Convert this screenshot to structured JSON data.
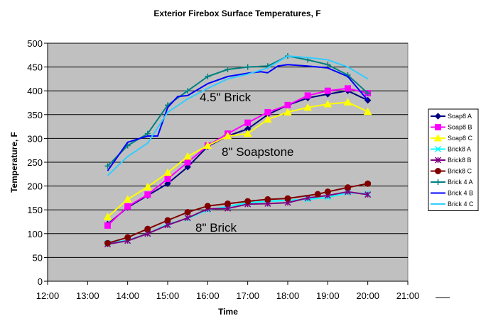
{
  "chart_data": {
    "type": "line",
    "title": "Exterior Firebox Surface Temperatures, F",
    "xlabel": "Time",
    "ylabel": "Temperature, F",
    "xlim": [
      "12:00",
      "21:00"
    ],
    "xticks": [
      "12:00",
      "13:00",
      "14:00",
      "15:00",
      "16:00",
      "17:00",
      "18:00",
      "19:00",
      "20:00",
      "21:00"
    ],
    "ylim": [
      0,
      500
    ],
    "yticks": [
      0,
      50,
      100,
      150,
      200,
      250,
      300,
      350,
      400,
      450,
      500
    ],
    "grid": "horizontal",
    "plot_background": "#c0c0c0",
    "legend_position": "right",
    "annotations": [
      "4.5\" Brick",
      "8\" Soapstone",
      "8\" Brick"
    ],
    "series": [
      {
        "name": "Soap8 A",
        "color": "#000080",
        "marker": "diamond",
        "x": [
          "13:30",
          "14:00",
          "14:30",
          "15:00",
          "15:30",
          "16:00",
          "16:30",
          "17:00",
          "17:30",
          "18:00",
          "18:30",
          "19:00",
          "19:30",
          "20:00"
        ],
        "y": [
          120,
          155,
          180,
          205,
          240,
          283,
          305,
          320,
          350,
          370,
          385,
          393,
          400,
          380
        ]
      },
      {
        "name": "Soap8 B",
        "color": "#ff00ff",
        "marker": "square",
        "x": [
          "13:30",
          "14:00",
          "14:30",
          "15:00",
          "15:30",
          "16:00",
          "16:30",
          "17:00",
          "17:30",
          "18:00",
          "18:30",
          "19:00",
          "19:30",
          "20:00"
        ],
        "y": [
          117,
          157,
          182,
          215,
          250,
          285,
          310,
          333,
          355,
          370,
          390,
          400,
          405,
          395
        ]
      },
      {
        "name": "Soap8 C",
        "color": "#ffff00",
        "marker": "triangle",
        "x": [
          "13:30",
          "14:00",
          "14:30",
          "15:00",
          "15:30",
          "16:00",
          "16:30",
          "17:00",
          "17:30",
          "18:00",
          "18:30",
          "19:00",
          "19:30",
          "20:00"
        ],
        "y": [
          135,
          172,
          198,
          228,
          262,
          285,
          305,
          310,
          340,
          355,
          365,
          372,
          376,
          356
        ]
      },
      {
        "name": "Brick8 A",
        "color": "#00ffff",
        "marker": "cross",
        "x": [
          "13:30",
          "14:00",
          "14:30",
          "15:00",
          "15:30",
          "16:00",
          "16:30",
          "17:00",
          "17:30",
          "18:00",
          "18:30",
          "19:00",
          "19:30",
          "20:00"
        ],
        "y": [
          80,
          86,
          100,
          120,
          132,
          150,
          157,
          165,
          168,
          170,
          172,
          176,
          186,
          184
        ]
      },
      {
        "name": "Brick8 B",
        "color": "#800080",
        "marker": "star",
        "x": [
          "13:30",
          "14:00",
          "14:30",
          "15:00",
          "15:30",
          "16:00",
          "16:30",
          "17:00",
          "17:30",
          "18:00",
          "18:30",
          "19:00",
          "19:30",
          "20:00"
        ],
        "y": [
          78,
          85,
          100,
          118,
          133,
          152,
          153,
          162,
          163,
          165,
          175,
          180,
          188,
          182
        ]
      },
      {
        "name": "Brick8 C",
        "color": "#800000",
        "marker": "circle",
        "x": [
          "13:30",
          "14:00",
          "14:30",
          "15:00",
          "15:30",
          "16:00",
          "16:30",
          "17:00",
          "17:30",
          "18:00",
          "18:45",
          "19:00",
          "19:30",
          "20:00"
        ],
        "y": [
          80,
          92,
          110,
          128,
          145,
          158,
          163,
          168,
          172,
          174,
          183,
          188,
          197,
          205
        ]
      },
      {
        "name": "Brick 4 A",
        "color": "#008080",
        "marker": "plus",
        "x": [
          "13:30",
          "14:00",
          "14:30",
          "15:00",
          "15:30",
          "16:00",
          "16:30",
          "17:00",
          "17:30",
          "18:00",
          "18:30",
          "19:00",
          "19:30",
          "20:00"
        ],
        "y": [
          242,
          285,
          310,
          370,
          400,
          430,
          445,
          450,
          452,
          473,
          465,
          455,
          433,
          395
        ]
      },
      {
        "name": "Brick 4 B",
        "color": "#0000ff",
        "marker": "none",
        "x": [
          "13:30",
          "14:00",
          "14:30",
          "14:45",
          "15:00",
          "15:15",
          "15:30",
          "16:00",
          "16:30",
          "17:00",
          "17:20",
          "17:30",
          "17:45",
          "18:00",
          "18:30",
          "19:00",
          "19:30",
          "20:00"
        ],
        "y": [
          232,
          292,
          305,
          305,
          365,
          388,
          390,
          415,
          430,
          437,
          440,
          438,
          452,
          455,
          452,
          448,
          430,
          380
        ]
      },
      {
        "name": "Brick 4 C",
        "color": "#33ccff",
        "marker": "none",
        "x": [
          "13:30",
          "14:00",
          "14:30",
          "15:00",
          "15:30",
          "16:00",
          "16:30",
          "17:00",
          "17:30",
          "18:00",
          "18:30",
          "19:00",
          "19:30",
          "20:00"
        ],
        "y": [
          222,
          262,
          290,
          355,
          383,
          405,
          425,
          435,
          448,
          473,
          470,
          465,
          450,
          425
        ]
      }
    ]
  }
}
